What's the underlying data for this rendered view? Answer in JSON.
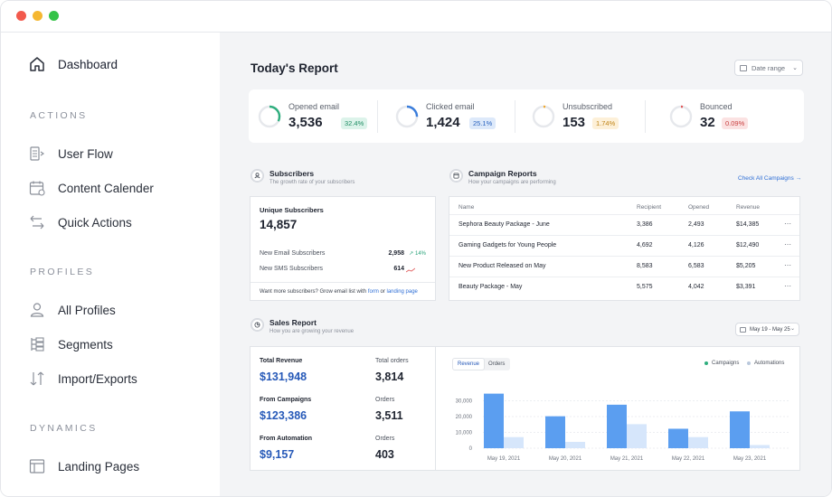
{
  "sidebar": {
    "dashboard": "Dashboard",
    "sections": {
      "actions": "ACTIONS",
      "profiles": "PROFILES",
      "dynamics": "DYNAMICS"
    },
    "items": {
      "user_flow": "User Flow",
      "content_calender": "Content Calender",
      "quick_actions": "Quick Actions",
      "all_profiles": "All Profiles",
      "segments": "Segments",
      "import_exports": "Import/Exports",
      "landing_pages": "Landing Pages"
    }
  },
  "header": {
    "title": "Today's Report",
    "date_range": "Date range"
  },
  "stats": [
    {
      "name": "Opened email",
      "value": "3,536",
      "badge": "32.4%",
      "fraction": 0.324,
      "color": "#2fae7e",
      "badge_bg": "#dcf3ea",
      "badge_fg": "#1f8d63"
    },
    {
      "name": "Clicked email",
      "value": "1,424",
      "badge": "25.1%",
      "fraction": 0.251,
      "color": "#3a7ddb",
      "badge_bg": "#dde9fa",
      "badge_fg": "#2a63bf"
    },
    {
      "name": "Unsubscribed",
      "value": "153",
      "badge": "1.74%",
      "fraction": 0.0174,
      "color": "#f0a830",
      "badge_bg": "#fdf0d8",
      "badge_fg": "#c0851a"
    },
    {
      "name": "Bounced",
      "value": "32",
      "badge": "0.09%",
      "fraction": 0.0009,
      "color": "#e05a5a",
      "badge_bg": "#fbe2e2",
      "badge_fg": "#c94040"
    }
  ],
  "subscribers": {
    "title": "Subscribers",
    "subtitle": "The growth rate of your subscribers",
    "unique_label": "Unique Subscribers",
    "unique_value": "14,857",
    "rows": [
      {
        "label": "New Email Subscribers",
        "value": "2,958",
        "growth": "14%"
      },
      {
        "label": "New SMS Subscribers",
        "value": "614",
        "growth": ""
      }
    ],
    "footer_text": "Want more subscribers? Grow email list with",
    "footer_link1": "form",
    "footer_or": "or",
    "footer_link2": "landing page"
  },
  "campaigns": {
    "title": "Campaign Reports",
    "subtitle": "How your campaigns are performing",
    "check_all": "Check All Campaigns",
    "columns": [
      "Name",
      "Recipient",
      "Opened",
      "Revenue"
    ],
    "rows": [
      [
        "Sephora Beauty Package - June",
        "3,386",
        "2,493",
        "$14,385"
      ],
      [
        "Gaming Gadgets for Young People",
        "4,692",
        "4,126",
        "$12,490"
      ],
      [
        "New Product Released on May",
        "8,583",
        "6,583",
        "$5,205"
      ],
      [
        "Beauty Package - May",
        "5,575",
        "4,042",
        "$3,391"
      ]
    ]
  },
  "sales": {
    "title": "Sales Report",
    "subtitle": "How you are growing your revenue",
    "date_range": "May 19 - May 25",
    "total_revenue_label": "Total Revenue",
    "total_revenue": "$131,948",
    "total_orders_label": "Total orders",
    "total_orders": "3,814",
    "from_campaigns_label": "From Campaigns",
    "from_campaigns": "$123,386",
    "campaign_orders_label": "Orders",
    "campaign_orders": "3,511",
    "from_automation_label": "From Automation",
    "from_automation": "$9,157",
    "automation_orders_label": "Orders",
    "automation_orders": "403",
    "tabs": [
      "Revenue",
      "Orders"
    ]
  },
  "chart_data": {
    "type": "bar",
    "categories": [
      "May 19, 2021",
      "May 20, 2021",
      "May 21, 2021",
      "May 22, 2021",
      "May 23, 2021"
    ],
    "series": [
      {
        "name": "Campaigns",
        "values": [
          34500,
          20200,
          27500,
          12300,
          23300
        ],
        "color": "#5b9ef0"
      },
      {
        "name": "Automations",
        "values": [
          7000,
          4000,
          15200,
          7000,
          2000
        ],
        "color": "#d6e6fb"
      }
    ],
    "yticks": [
      "0",
      "10,000",
      "20,000",
      "30,000"
    ],
    "ylim": [
      0,
      40000
    ],
    "legend_position": "top-right"
  }
}
